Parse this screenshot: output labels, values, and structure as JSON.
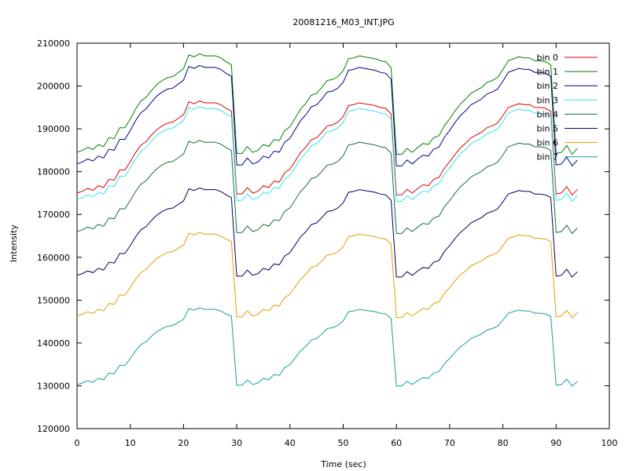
{
  "chart_data": {
    "type": "line",
    "title": "20081216_M03_INT.JPG",
    "xlabel": "Time (sec)",
    "ylabel": "Intensity",
    "xlim": [
      0,
      100
    ],
    "ylim": [
      120000,
      210000
    ],
    "xticks": [
      0,
      10,
      20,
      30,
      40,
      50,
      60,
      70,
      80,
      90,
      100
    ],
    "yticks": [
      120000,
      130000,
      140000,
      150000,
      160000,
      170000,
      180000,
      190000,
      200000,
      210000
    ],
    "grid": false,
    "legend_position": "top-right",
    "x": [
      0,
      1,
      2,
      3,
      4,
      5,
      6,
      7,
      8,
      9,
      10,
      11,
      12,
      13,
      14,
      15,
      16,
      17,
      18,
      19,
      20,
      21,
      22,
      23,
      24,
      25,
      26,
      27,
      28,
      29,
      30,
      31,
      32,
      33,
      34,
      35,
      36,
      37,
      38,
      39,
      40,
      41,
      42,
      43,
      44,
      45,
      46,
      47,
      48,
      49,
      50,
      51,
      52,
      53,
      54,
      55,
      56,
      57,
      58,
      59,
      60,
      61,
      62,
      63,
      64,
      65,
      66,
      67,
      68,
      69,
      70,
      71,
      72,
      73,
      74,
      75,
      76,
      77,
      78,
      79,
      80,
      81,
      82,
      83,
      84,
      85,
      86,
      87,
      88,
      89,
      90,
      91,
      92,
      93,
      94
    ],
    "profile": [
      0.0,
      0.02,
      0.05,
      0.03,
      0.08,
      0.06,
      0.15,
      0.14,
      0.25,
      0.25,
      0.34,
      0.44,
      0.52,
      0.56,
      0.63,
      0.69,
      0.73,
      0.76,
      0.77,
      0.81,
      0.85,
      0.99,
      0.97,
      1.0,
      0.98,
      0.98,
      0.98,
      0.96,
      0.92,
      0.89,
      -0.01,
      -0.01,
      0.06,
      0.0,
      0.02,
      0.08,
      0.06,
      0.13,
      0.12,
      0.22,
      0.26,
      0.35,
      0.44,
      0.5,
      0.58,
      0.6,
      0.66,
      0.73,
      0.74,
      0.77,
      0.83,
      0.95,
      0.96,
      0.98,
      0.97,
      0.96,
      0.95,
      0.93,
      0.92,
      0.86,
      -0.02,
      -0.02,
      0.04,
      0.0,
      0.05,
      0.09,
      0.08,
      0.15,
      0.17,
      0.27,
      0.34,
      0.42,
      0.49,
      0.54,
      0.6,
      0.63,
      0.66,
      0.71,
      0.73,
      0.76,
      0.84,
      0.93,
      0.95,
      0.97,
      0.96,
      0.96,
      0.93,
      0.93,
      0.92,
      0.89,
      -0.01,
      0.0,
      0.07,
      -0.02,
      0.04
    ],
    "series": [
      {
        "name": "bin 0",
        "color": "#e00000",
        "low": 175000,
        "high": 196500
      },
      {
        "name": "bin 1",
        "color": "#008000",
        "low": 184500,
        "high": 207500
      },
      {
        "name": "bin 2",
        "color": "#00008b",
        "low": 181800,
        "high": 204800
      },
      {
        "name": "bin 3",
        "color": "#33e6e6",
        "low": 173500,
        "high": 195200
      },
      {
        "name": "bin 4",
        "color": "#1a6e3a",
        "low": 166000,
        "high": 187300
      },
      {
        "name": "bin 5",
        "color": "#000060",
        "low": 155800,
        "high": 176200
      },
      {
        "name": "bin 6",
        "color": "#e0a000",
        "low": 146300,
        "high": 165800
      },
      {
        "name": "bin 7",
        "color": "#16a0a0",
        "low": 130300,
        "high": 148200
      }
    ]
  }
}
